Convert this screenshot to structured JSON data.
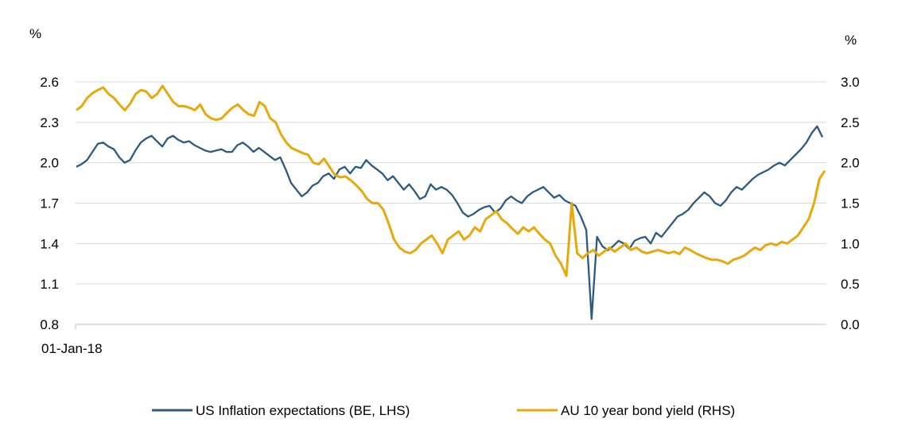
{
  "chart_data": {
    "type": "line",
    "x_start_label": "01-Jan-18",
    "left_axis": {
      "unit": "%",
      "ylim": [
        0.8,
        2.6
      ],
      "ticks": [
        "2.6",
        "2.3",
        "2.0",
        "1.7",
        "1.4",
        "1.1",
        "0.8"
      ]
    },
    "right_axis": {
      "unit": "%",
      "ylim": [
        0.0,
        3.0
      ],
      "ticks": [
        "3.0",
        "2.5",
        "2.0",
        "1.5",
        "1.0",
        "0.5",
        "0.0"
      ]
    },
    "grid": true,
    "legend_position": "bottom",
    "series": [
      {
        "name": "US Inflation expectations (BE, LHS)",
        "axis": "left",
        "color": "#2e5a82",
        "values": [
          1.97,
          1.99,
          2.02,
          2.08,
          2.14,
          2.15,
          2.12,
          2.1,
          2.04,
          2.0,
          2.02,
          2.09,
          2.15,
          2.18,
          2.2,
          2.16,
          2.12,
          2.18,
          2.2,
          2.17,
          2.15,
          2.16,
          2.13,
          2.11,
          2.09,
          2.08,
          2.09,
          2.1,
          2.08,
          2.08,
          2.13,
          2.15,
          2.12,
          2.08,
          2.11,
          2.08,
          2.05,
          2.02,
          2.04,
          1.95,
          1.85,
          1.8,
          1.75,
          1.78,
          1.83,
          1.85,
          1.9,
          1.92,
          1.88,
          1.95,
          1.97,
          1.92,
          1.97,
          1.96,
          2.02,
          1.98,
          1.95,
          1.92,
          1.87,
          1.9,
          1.85,
          1.8,
          1.84,
          1.79,
          1.73,
          1.75,
          1.84,
          1.8,
          1.82,
          1.8,
          1.76,
          1.7,
          1.63,
          1.6,
          1.62,
          1.65,
          1.67,
          1.68,
          1.63,
          1.66,
          1.72,
          1.75,
          1.72,
          1.7,
          1.75,
          1.78,
          1.8,
          1.82,
          1.78,
          1.74,
          1.76,
          1.72,
          1.7,
          1.68,
          1.6,
          1.5,
          0.84,
          1.45,
          1.38,
          1.35,
          1.38,
          1.42,
          1.4,
          1.36,
          1.42,
          1.44,
          1.45,
          1.4,
          1.48,
          1.45,
          1.5,
          1.55,
          1.6,
          1.62,
          1.65,
          1.7,
          1.74,
          1.78,
          1.75,
          1.7,
          1.68,
          1.72,
          1.78,
          1.82,
          1.8,
          1.84,
          1.88,
          1.91,
          1.93,
          1.95,
          1.98,
          2.0,
          1.98,
          2.02,
          2.06,
          2.1,
          2.15,
          2.22,
          2.27,
          2.19
        ]
      },
      {
        "name": "AU 10 year bond yield (RHS)",
        "axis": "right",
        "color": "#e8a90c",
        "values": [
          2.65,
          2.7,
          2.8,
          2.86,
          2.9,
          2.93,
          2.85,
          2.8,
          2.72,
          2.65,
          2.73,
          2.85,
          2.9,
          2.88,
          2.8,
          2.85,
          2.95,
          2.85,
          2.75,
          2.7,
          2.7,
          2.68,
          2.65,
          2.72,
          2.6,
          2.55,
          2.53,
          2.55,
          2.62,
          2.68,
          2.72,
          2.65,
          2.6,
          2.58,
          2.75,
          2.7,
          2.55,
          2.5,
          2.35,
          2.25,
          2.18,
          2.15,
          2.12,
          2.1,
          2.0,
          1.98,
          2.05,
          1.95,
          1.85,
          1.82,
          1.83,
          1.78,
          1.72,
          1.65,
          1.55,
          1.5,
          1.5,
          1.42,
          1.25,
          1.05,
          0.95,
          0.9,
          0.88,
          0.92,
          1.0,
          1.05,
          1.1,
          1.0,
          0.88,
          1.05,
          1.1,
          1.15,
          1.05,
          1.1,
          1.2,
          1.15,
          1.3,
          1.35,
          1.4,
          1.3,
          1.25,
          1.18,
          1.12,
          1.2,
          1.15,
          1.2,
          1.12,
          1.05,
          1.0,
          0.85,
          0.75,
          0.6,
          1.5,
          0.88,
          0.82,
          0.88,
          0.92,
          0.85,
          0.9,
          0.95,
          0.9,
          0.95,
          1.0,
          0.92,
          0.95,
          0.9,
          0.88,
          0.9,
          0.92,
          0.9,
          0.88,
          0.9,
          0.87,
          0.95,
          0.92,
          0.88,
          0.85,
          0.82,
          0.8,
          0.8,
          0.78,
          0.75,
          0.8,
          0.82,
          0.85,
          0.9,
          0.95,
          0.92,
          0.98,
          1.0,
          0.98,
          1.02,
          1.0,
          1.05,
          1.1,
          1.2,
          1.3,
          1.5,
          1.8,
          1.9
        ]
      }
    ]
  }
}
